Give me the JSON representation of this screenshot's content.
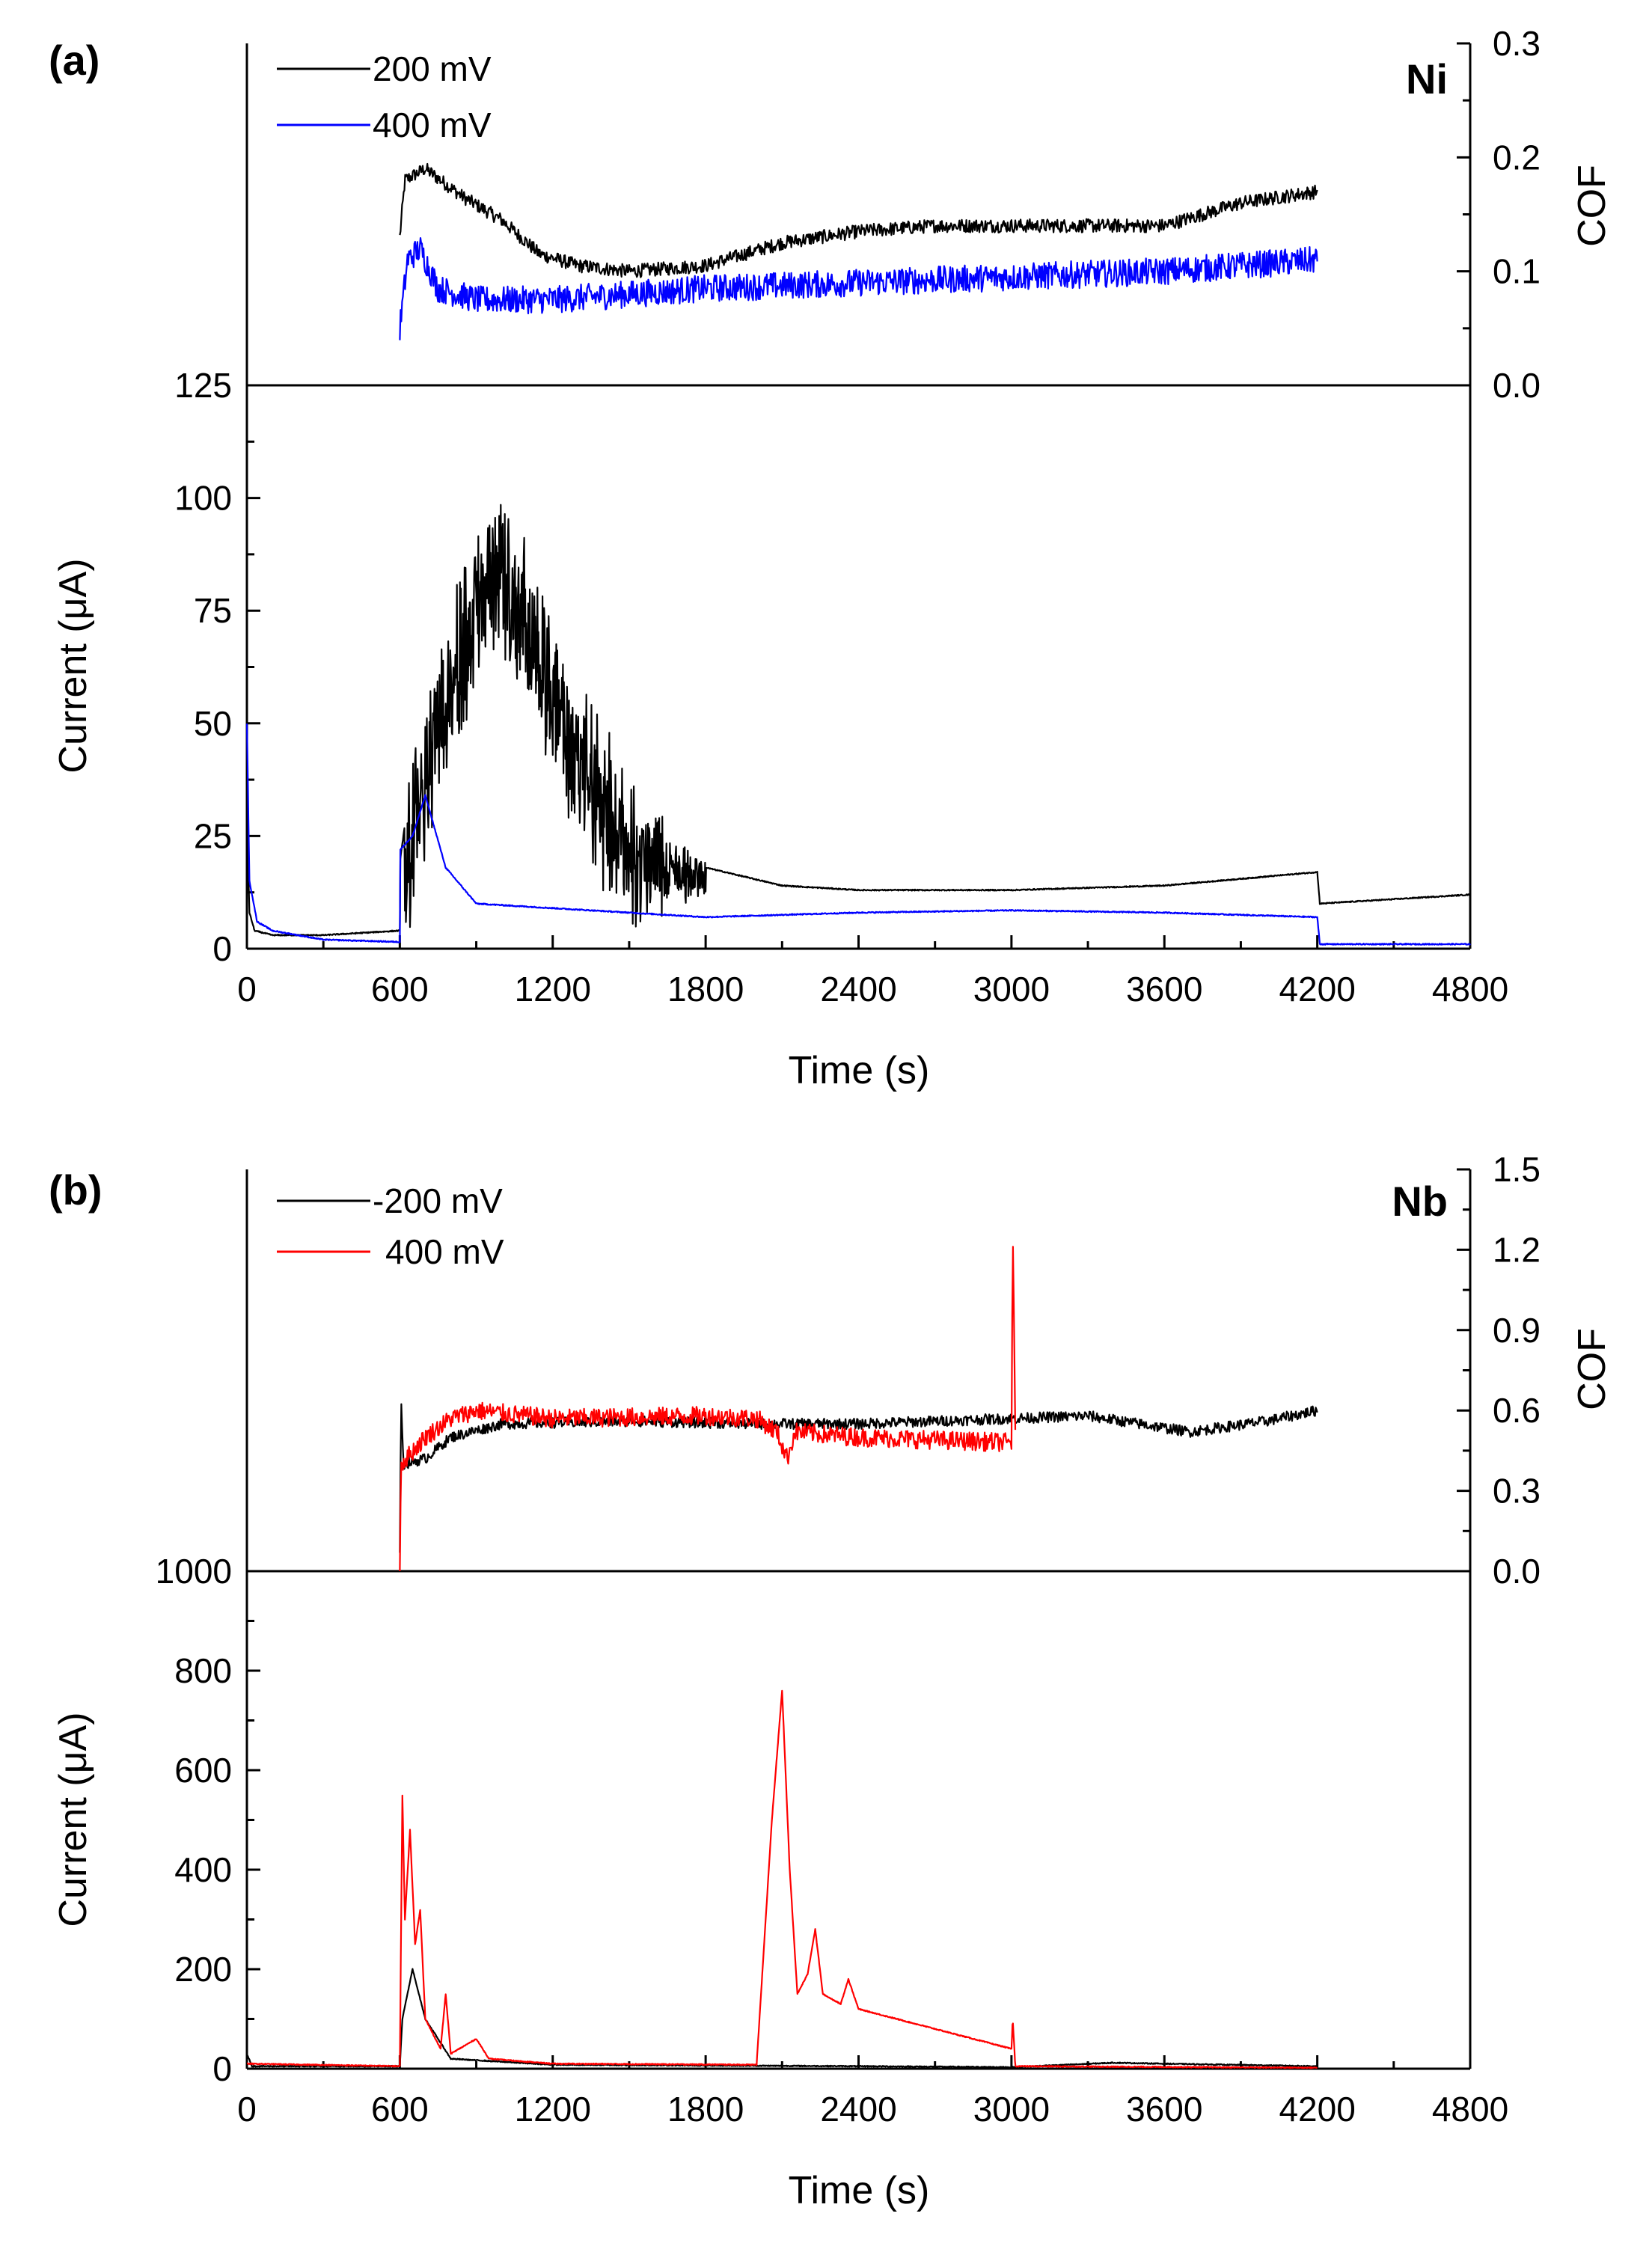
{
  "chart_data": [
    {
      "panel": "(a)",
      "material": "Ni",
      "type": "line",
      "xlabel": "Time (s)",
      "xlim": [
        0,
        4800
      ],
      "xticks": [
        0,
        600,
        1200,
        1800,
        2400,
        3000,
        3600,
        4200,
        4800
      ],
      "cof": {
        "ylabel": "COF",
        "ylim": [
          0.0,
          0.3
        ],
        "yticks": [
          "0.0",
          "0.1",
          "0.2",
          "0.3"
        ],
        "series": [
          {
            "name": "200 mV",
            "color": "#000000",
            "noise": 0.006,
            "points": [
              [
                600,
                0.13
              ],
              [
                620,
                0.18
              ],
              [
                700,
                0.19
              ],
              [
                850,
                0.165
              ],
              [
                1000,
                0.145
              ],
              [
                1150,
                0.115
              ],
              [
                1300,
                0.105
              ],
              [
                1500,
                0.1
              ],
              [
                1800,
                0.105
              ],
              [
                2100,
                0.125
              ],
              [
                2400,
                0.135
              ],
              [
                2700,
                0.14
              ],
              [
                3000,
                0.14
              ],
              [
                3300,
                0.14
              ],
              [
                3600,
                0.14
              ],
              [
                3900,
                0.16
              ],
              [
                4200,
                0.17
              ]
            ]
          },
          {
            "name": "400 mV",
            "color": "#0000ff",
            "noise": 0.012,
            "points": [
              [
                600,
                0.05
              ],
              [
                630,
                0.11
              ],
              [
                680,
                0.12
              ],
              [
                750,
                0.085
              ],
              [
                900,
                0.075
              ],
              [
                1200,
                0.075
              ],
              [
                1500,
                0.08
              ],
              [
                1800,
                0.085
              ],
              [
                2400,
                0.09
              ],
              [
                3000,
                0.095
              ],
              [
                3600,
                0.1
              ],
              [
                4200,
                0.11
              ]
            ]
          }
        ]
      },
      "current": {
        "ylabel": "Current (μA)",
        "ylim": [
          0,
          125
        ],
        "yticks": [
          "0",
          "25",
          "50",
          "75",
          "100",
          "125"
        ],
        "series": [
          {
            "name": "200 mV",
            "color": "#000000",
            "points": [
              [
                0,
                30
              ],
              [
                10,
                8
              ],
              [
                30,
                4
              ],
              [
                100,
                3
              ],
              [
                300,
                3
              ],
              [
                600,
                4
              ],
              [
                602,
                20
              ],
              [
                650,
                40
              ],
              [
                750,
                62
              ],
              [
                900,
                88
              ],
              [
                1000,
                95
              ],
              [
                1100,
                85
              ],
              [
                1200,
                68
              ],
              [
                1350,
                50
              ],
              [
                1500,
                35
              ],
              [
                1650,
                24
              ],
              [
                1800,
                18
              ],
              [
                2100,
                14
              ],
              [
                2400,
                13
              ],
              [
                3000,
                13
              ],
              [
                3600,
                14
              ],
              [
                4200,
                17
              ],
              [
                4210,
                10
              ],
              [
                4800,
                12
              ]
            ],
            "noise_segments": [
              [
                620,
                1800,
                26
              ]
            ]
          },
          {
            "name": "400 mV",
            "color": "#0000ff",
            "points": [
              [
                0,
                50
              ],
              [
                10,
                15
              ],
              [
                40,
                6
              ],
              [
                100,
                4
              ],
              [
                300,
                2
              ],
              [
                600,
                1.5
              ],
              [
                602,
                22
              ],
              [
                650,
                25
              ],
              [
                700,
                34
              ],
              [
                780,
                18
              ],
              [
                900,
                10
              ],
              [
                1200,
                9
              ],
              [
                1800,
                7
              ],
              [
                2400,
                8
              ],
              [
                3000,
                8.5
              ],
              [
                3600,
                8
              ],
              [
                4200,
                7
              ],
              [
                4210,
                1
              ],
              [
                4800,
                1
              ]
            ],
            "noise_segments": []
          }
        ]
      }
    },
    {
      "panel": "(b)",
      "material": "Nb",
      "type": "line",
      "xlabel": "Time (s)",
      "xlim": [
        0,
        4800
      ],
      "xticks": [
        0,
        600,
        1200,
        1800,
        2400,
        3000,
        3600,
        4200,
        4800
      ],
      "cof": {
        "ylabel": "COF",
        "ylim": [
          0.0,
          1.5
        ],
        "yticks": [
          "0.0",
          "0.3",
          "0.6",
          "0.9",
          "1.2",
          "1.5"
        ],
        "series": [
          {
            "name": "-200 mV",
            "color": "#000000",
            "noise": 0.02,
            "points": [
              [
                600,
                0.05
              ],
              [
                605,
                0.65
              ],
              [
                615,
                0.4
              ],
              [
                700,
                0.42
              ],
              [
                800,
                0.5
              ],
              [
                1000,
                0.55
              ],
              [
                1500,
                0.56
              ],
              [
                2000,
                0.55
              ],
              [
                2400,
                0.55
              ],
              [
                3000,
                0.57
              ],
              [
                3300,
                0.58
              ],
              [
                3500,
                0.55
              ],
              [
                3700,
                0.52
              ],
              [
                4000,
                0.56
              ],
              [
                4200,
                0.6
              ]
            ]
          },
          {
            "name": "400 mV",
            "color": "#ff0000",
            "noise": 0.035,
            "points": [
              [
                600,
                0.02
              ],
              [
                605,
                0.4
              ],
              [
                700,
                0.5
              ],
              [
                800,
                0.57
              ],
              [
                900,
                0.6
              ],
              [
                1200,
                0.57
              ],
              [
                1800,
                0.58
              ],
              [
                2000,
                0.57
              ],
              [
                2080,
                0.52
              ],
              [
                2120,
                0.42
              ],
              [
                2150,
                0.52
              ],
              [
                2400,
                0.5
              ],
              [
                3000,
                0.48
              ],
              [
                3005,
                1.3
              ],
              [
                3015,
                0.5
              ]
            ]
          }
        ]
      },
      "current": {
        "ylabel": "Current (μA)",
        "ylim": [
          0,
          1000
        ],
        "yticks": [
          "0",
          "200",
          "400",
          "600",
          "800",
          "1000"
        ],
        "series": [
          {
            "name": "-200 mV",
            "color": "#000000",
            "points": [
              [
                0,
                30
              ],
              [
                20,
                5
              ],
              [
                600,
                5
              ],
              [
                610,
                100
              ],
              [
                650,
                200
              ],
              [
                700,
                100
              ],
              [
                800,
                20
              ],
              [
                1200,
                8
              ],
              [
                2400,
                5
              ],
              [
                3000,
                3
              ],
              [
                3400,
                12
              ],
              [
                3600,
                10
              ],
              [
                4200,
                5
              ]
            ],
            "noise_segments": []
          },
          {
            "name": "400 mV",
            "color": "#ff0000",
            "points": [
              [
                0,
                10
              ],
              [
                600,
                5
              ],
              [
                610,
                550
              ],
              [
                620,
                300
              ],
              [
                640,
                480
              ],
              [
                660,
                250
              ],
              [
                680,
                320
              ],
              [
                700,
                100
              ],
              [
                760,
                40
              ],
              [
                780,
                150
              ],
              [
                800,
                30
              ],
              [
                900,
                60
              ],
              [
                950,
                20
              ],
              [
                1200,
                10
              ],
              [
                2000,
                8
              ],
              [
                2060,
                500
              ],
              [
                2100,
                760
              ],
              [
                2130,
                400
              ],
              [
                2160,
                150
              ],
              [
                2200,
                190
              ],
              [
                2230,
                280
              ],
              [
                2260,
                150
              ],
              [
                2330,
                130
              ],
              [
                2360,
                180
              ],
              [
                2400,
                120
              ],
              [
                2700,
                80
              ],
              [
                3000,
                40
              ],
              [
                3005,
                100
              ],
              [
                3015,
                5
              ],
              [
                4200,
                2
              ]
            ],
            "noise_segments": []
          }
        ]
      }
    }
  ]
}
